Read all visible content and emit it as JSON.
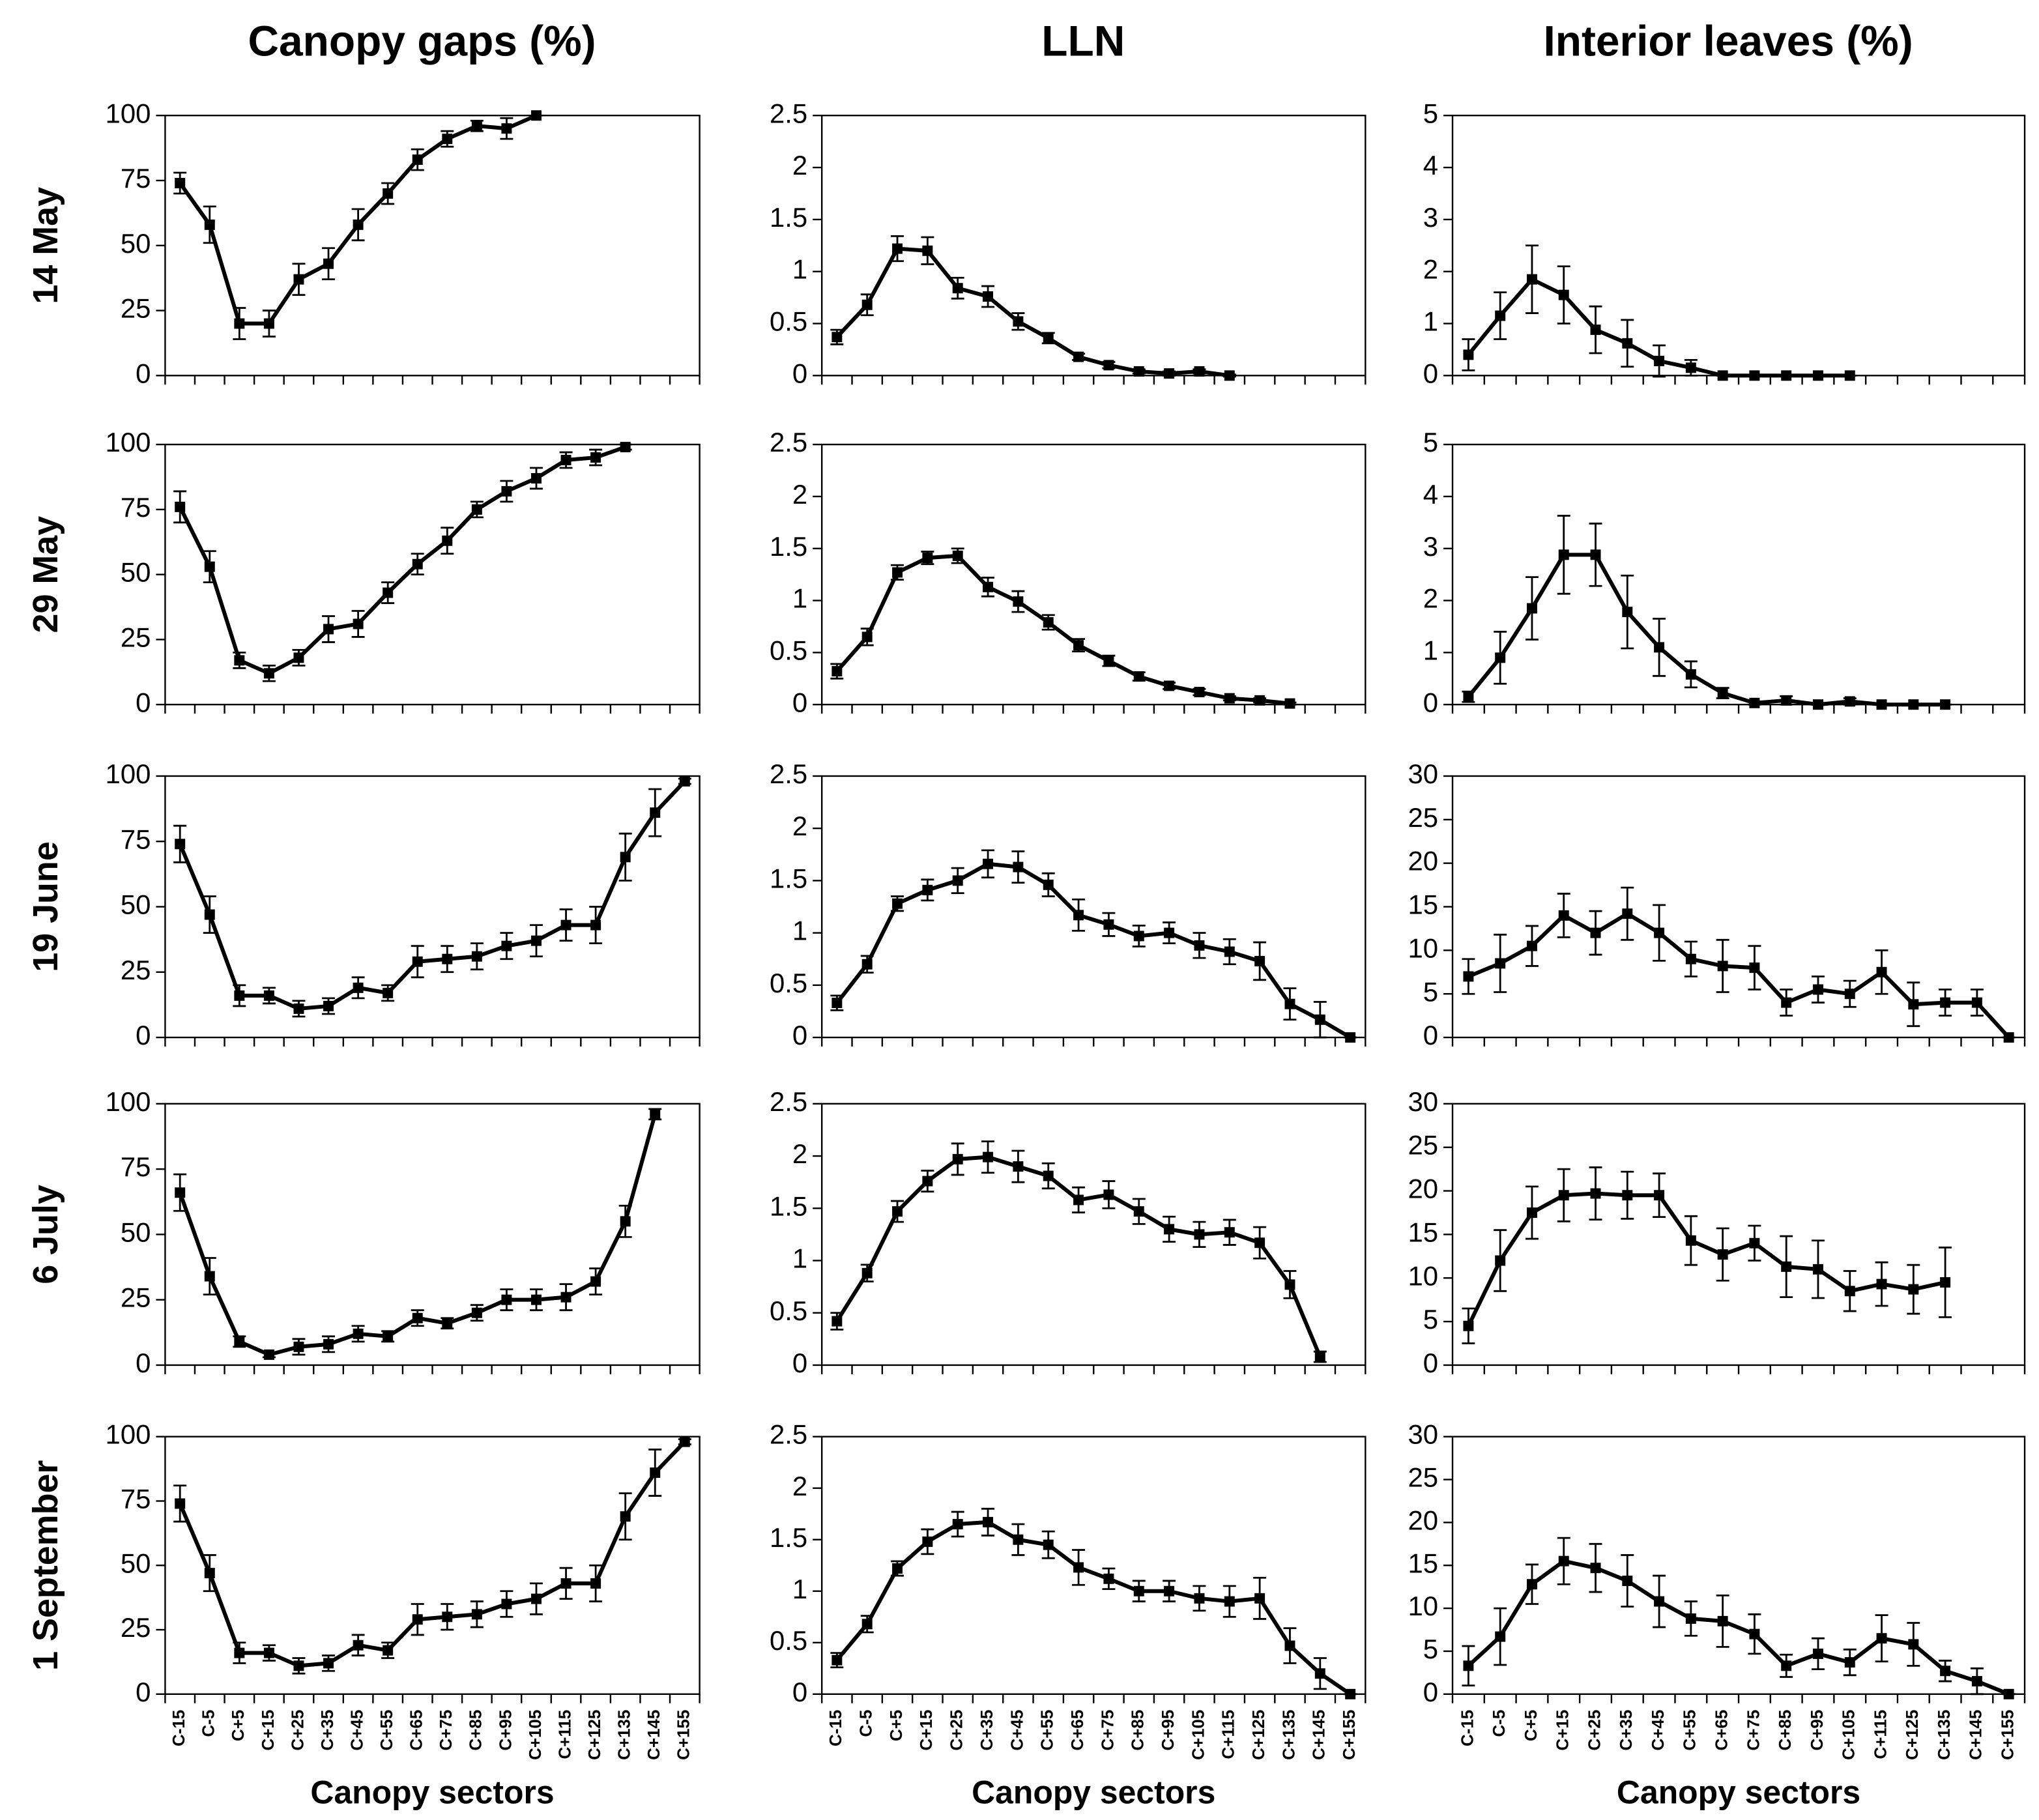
{
  "chart_data": [
    {
      "type": "line",
      "title": "Canopy gaps (%)",
      "ylabel": "14 May",
      "ylim": [
        0,
        100
      ],
      "yticks": [
        0,
        25,
        50,
        75,
        100
      ],
      "color": "#000000",
      "values": [
        74,
        58,
        20,
        20,
        37,
        43,
        58,
        70,
        83,
        91,
        96,
        95,
        100
      ],
      "errors": [
        4,
        7,
        6,
        5,
        6,
        6,
        6,
        4,
        4,
        3,
        2,
        4,
        0
      ]
    },
    {
      "type": "line",
      "title": "LLN",
      "ylim": [
        0,
        2.5
      ],
      "yticks": [
        0,
        0.5,
        1,
        1.5,
        2,
        2.5
      ],
      "color": "#000000",
      "values": [
        0.37,
        0.68,
        1.22,
        1.2,
        0.84,
        0.76,
        0.52,
        0.36,
        0.18,
        0.1,
        0.04,
        0.02,
        0.04,
        0.0
      ],
      "errors": [
        0.07,
        0.1,
        0.12,
        0.13,
        0.1,
        0.1,
        0.08,
        0.05,
        0.03,
        0.03,
        0.02,
        0.02,
        0.02,
        0.01
      ]
    },
    {
      "type": "line",
      "title": "Interior leaves (%)",
      "ylim": [
        0,
        5
      ],
      "yticks": [
        0,
        1,
        2,
        3,
        4,
        5
      ],
      "color": "#000000",
      "values": [
        0.4,
        1.15,
        1.85,
        1.55,
        0.88,
        0.62,
        0.28,
        0.15,
        0,
        0,
        0,
        0,
        0
      ],
      "errors": [
        0.3,
        0.45,
        0.65,
        0.55,
        0.45,
        0.45,
        0.3,
        0.15,
        0,
        0,
        0,
        0,
        0
      ]
    },
    {
      "type": "line",
      "ylabel": "29 May",
      "ylim": [
        0,
        100
      ],
      "yticks": [
        0,
        25,
        50,
        75,
        100
      ],
      "color": "#000000",
      "values": [
        76,
        53,
        17,
        12,
        18,
        29,
        31,
        43,
        54,
        63,
        75,
        82,
        87,
        94,
        95,
        99
      ],
      "errors": [
        6,
        6,
        3,
        3,
        3,
        5,
        5,
        4,
        4,
        5,
        3,
        4,
        4,
        3,
        3,
        1
      ]
    },
    {
      "type": "line",
      "ylim": [
        0,
        2.5
      ],
      "yticks": [
        0,
        0.5,
        1,
        1.5,
        2,
        2.5
      ],
      "color": "#000000",
      "values": [
        0.32,
        0.65,
        1.27,
        1.41,
        1.43,
        1.13,
        0.99,
        0.79,
        0.57,
        0.42,
        0.27,
        0.18,
        0.12,
        0.06,
        0.04,
        0.01
      ],
      "errors": [
        0.07,
        0.08,
        0.07,
        0.06,
        0.07,
        0.09,
        0.1,
        0.07,
        0.06,
        0.05,
        0.04,
        0.03,
        0.03,
        0.02,
        0.02,
        0.01
      ]
    },
    {
      "type": "line",
      "ylim": [
        0,
        5
      ],
      "yticks": [
        0,
        1,
        2,
        3,
        4,
        5
      ],
      "color": "#000000",
      "values": [
        0.15,
        0.9,
        1.85,
        2.88,
        2.88,
        1.78,
        1.1,
        0.58,
        0.22,
        0.03,
        0.08,
        0,
        0.06,
        0,
        0,
        0
      ],
      "errors": [
        0.1,
        0.5,
        0.6,
        0.75,
        0.6,
        0.7,
        0.55,
        0.25,
        0.1,
        0.03,
        0.08,
        0,
        0.06,
        0,
        0,
        0
      ]
    },
    {
      "type": "line",
      "ylabel": "19 June",
      "ylim": [
        0,
        100
      ],
      "yticks": [
        0,
        25,
        50,
        75,
        100
      ],
      "color": "#000000",
      "values": [
        74,
        47,
        16,
        16,
        11,
        12,
        19,
        17,
        29,
        30,
        31,
        35,
        37,
        43,
        43,
        69,
        86,
        98
      ],
      "errors": [
        7,
        7,
        4,
        3,
        3,
        3,
        4,
        3,
        6,
        5,
        5,
        5,
        6,
        6,
        7,
        9,
        9,
        1
      ]
    },
    {
      "type": "line",
      "ylim": [
        0,
        2.5
      ],
      "yticks": [
        0,
        0.5,
        1,
        1.5,
        2,
        2.5
      ],
      "color": "#000000",
      "values": [
        0.33,
        0.7,
        1.28,
        1.41,
        1.5,
        1.66,
        1.63,
        1.46,
        1.17,
        1.08,
        0.97,
        1.0,
        0.88,
        0.82,
        0.73,
        0.32,
        0.17,
        0
      ],
      "errors": [
        0.07,
        0.08,
        0.07,
        0.1,
        0.12,
        0.13,
        0.15,
        0.11,
        0.15,
        0.11,
        0.1,
        0.1,
        0.12,
        0.12,
        0.18,
        0.15,
        0.17,
        0
      ]
    },
    {
      "type": "line",
      "ylim": [
        0,
        30
      ],
      "yticks": [
        0,
        5,
        10,
        15,
        20,
        25,
        30
      ],
      "color": "#000000",
      "values": [
        7,
        8.5,
        10.5,
        14,
        12,
        14.2,
        12,
        9,
        8.2,
        8,
        4,
        5.5,
        5,
        7.5,
        3.8,
        4,
        4,
        0
      ],
      "errors": [
        2,
        3.3,
        2.3,
        2.5,
        2.5,
        3,
        3.2,
        2,
        3,
        2.5,
        1.5,
        1.5,
        1.5,
        2.5,
        2.5,
        1.5,
        1.5,
        0
      ]
    },
    {
      "type": "line",
      "ylabel": "6 July",
      "ylim": [
        0,
        100
      ],
      "yticks": [
        0,
        25,
        50,
        75,
        100
      ],
      "color": "#000000",
      "values": [
        66,
        34,
        9,
        4,
        7,
        8,
        12,
        11,
        18,
        16,
        20,
        25,
        25,
        26,
        32,
        55,
        96
      ],
      "errors": [
        7,
        7,
        2,
        1,
        3,
        3,
        3,
        2,
        3,
        2,
        3,
        4,
        4,
        5,
        5,
        6,
        2
      ]
    },
    {
      "type": "line",
      "ylim": [
        0,
        2.5
      ],
      "yticks": [
        0,
        0.5,
        1,
        1.5,
        2,
        2.5
      ],
      "color": "#000000",
      "values": [
        0.42,
        0.88,
        1.47,
        1.76,
        1.97,
        1.99,
        1.9,
        1.81,
        1.58,
        1.63,
        1.47,
        1.3,
        1.25,
        1.27,
        1.17,
        0.77,
        0.08
      ],
      "errors": [
        0.08,
        0.08,
        0.1,
        0.1,
        0.15,
        0.15,
        0.15,
        0.12,
        0.12,
        0.13,
        0.12,
        0.12,
        0.12,
        0.12,
        0.15,
        0.13,
        0.05
      ]
    },
    {
      "type": "line",
      "ylim": [
        0,
        30
      ],
      "yticks": [
        0,
        5,
        10,
        15,
        20,
        25,
        30
      ],
      "color": "#000000",
      "values": [
        4.5,
        12,
        17.5,
        19.5,
        19.7,
        19.5,
        19.5,
        14.3,
        12.7,
        14,
        11.3,
        11,
        8.5,
        9.3,
        8.7,
        9.5
      ],
      "errors": [
        2,
        3.5,
        3,
        3,
        3,
        2.7,
        2.5,
        2.8,
        3,
        2,
        3.5,
        3.3,
        2.3,
        2.5,
        2.8,
        4
      ]
    },
    {
      "type": "line",
      "ylabel": "1 September",
      "xlabel": "Canopy sectors",
      "ylim": [
        0,
        100
      ],
      "yticks": [
        0,
        25,
        50,
        75,
        100
      ],
      "color": "#000000",
      "categories": [
        "C-15",
        "C-5",
        "C+5",
        "C+15",
        "C+25",
        "C+35",
        "C+45",
        "C+55",
        "C+65",
        "C+75",
        "C+85",
        "C+95",
        "C+105",
        "C+115",
        "C+125",
        "C+135",
        "C+145",
        "C+155"
      ],
      "values": [
        74,
        47,
        16,
        16,
        11,
        12,
        19,
        17,
        29,
        30,
        31,
        35,
        37,
        43,
        43,
        69,
        86,
        98
      ],
      "errors": [
        7,
        7,
        4,
        3,
        3,
        3,
        4,
        3,
        6,
        5,
        5,
        5,
        6,
        6,
        7,
        9,
        9,
        1
      ]
    },
    {
      "type": "line",
      "xlabel": "Canopy sectors",
      "ylim": [
        0,
        2.5
      ],
      "yticks": [
        0,
        0.5,
        1,
        1.5,
        2,
        2.5
      ],
      "color": "#000000",
      "categories": [
        "C-15",
        "C-5",
        "C+5",
        "C+15",
        "C+25",
        "C+35",
        "C+45",
        "C+55",
        "C+65",
        "C+75",
        "C+85",
        "C+95",
        "C+105",
        "C+115",
        "C+125",
        "C+135",
        "C+145",
        "C+155"
      ],
      "values": [
        0.33,
        0.68,
        1.22,
        1.48,
        1.65,
        1.67,
        1.5,
        1.45,
        1.23,
        1.12,
        1.0,
        1.0,
        0.93,
        0.9,
        0.93,
        0.47,
        0.2,
        0
      ],
      "errors": [
        0.07,
        0.08,
        0.07,
        0.12,
        0.12,
        0.13,
        0.15,
        0.13,
        0.17,
        0.1,
        0.1,
        0.1,
        0.12,
        0.15,
        0.2,
        0.17,
        0.15,
        0
      ]
    },
    {
      "type": "line",
      "xlabel": "Canopy sectors",
      "ylim": [
        0,
        30
      ],
      "yticks": [
        0,
        5,
        10,
        15,
        20,
        25,
        30
      ],
      "color": "#000000",
      "categories": [
        "C-15",
        "C-5",
        "C+5",
        "C+15",
        "C+25",
        "C+35",
        "C+45",
        "C+55",
        "C+65",
        "C+75",
        "C+85",
        "C+95",
        "C+105",
        "C+115",
        "C+125",
        "C+135",
        "C+145",
        "C+155"
      ],
      "values": [
        3.3,
        6.7,
        12.8,
        15.5,
        14.7,
        13.2,
        10.8,
        8.8,
        8.5,
        7,
        3.3,
        4.7,
        3.7,
        6.5,
        5.8,
        2.7,
        1.5,
        0
      ],
      "errors": [
        2.3,
        3.3,
        2.3,
        2.7,
        2.8,
        3,
        3,
        2,
        3,
        2.3,
        1.3,
        1.8,
        1.5,
        2.7,
        2.5,
        1.2,
        1.5,
        0
      ]
    }
  ]
}
